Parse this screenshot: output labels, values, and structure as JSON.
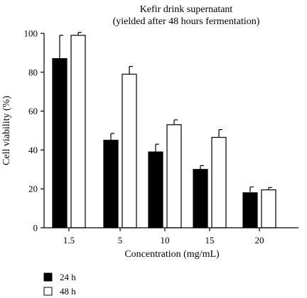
{
  "chart_data": {
    "type": "bar",
    "title_lines": [
      "Kefir drink supernatant",
      "(yielded after 48 hours fermentation)"
    ],
    "xlabel": "Concentration (mg/mL)",
    "ylabel": "Cell viability (%)",
    "ylim": [
      0,
      100
    ],
    "yticks": [
      0,
      20,
      40,
      60,
      80,
      100
    ],
    "categories": [
      "1.5",
      "5",
      "10",
      "15",
      "20"
    ],
    "grid": false,
    "legend_position": "bottom-left",
    "series": [
      {
        "name": "24 h",
        "fill": "#000000",
        "values": [
          87,
          45,
          39,
          30,
          18
        ],
        "errors": [
          12,
          3.5,
          4,
          2,
          3
        ]
      },
      {
        "name": "48 h",
        "fill": "#ffffff",
        "values": [
          99,
          79,
          53,
          46.5,
          19.5
        ],
        "errors": [
          1.5,
          4,
          2.5,
          4,
          1.2
        ]
      }
    ]
  }
}
